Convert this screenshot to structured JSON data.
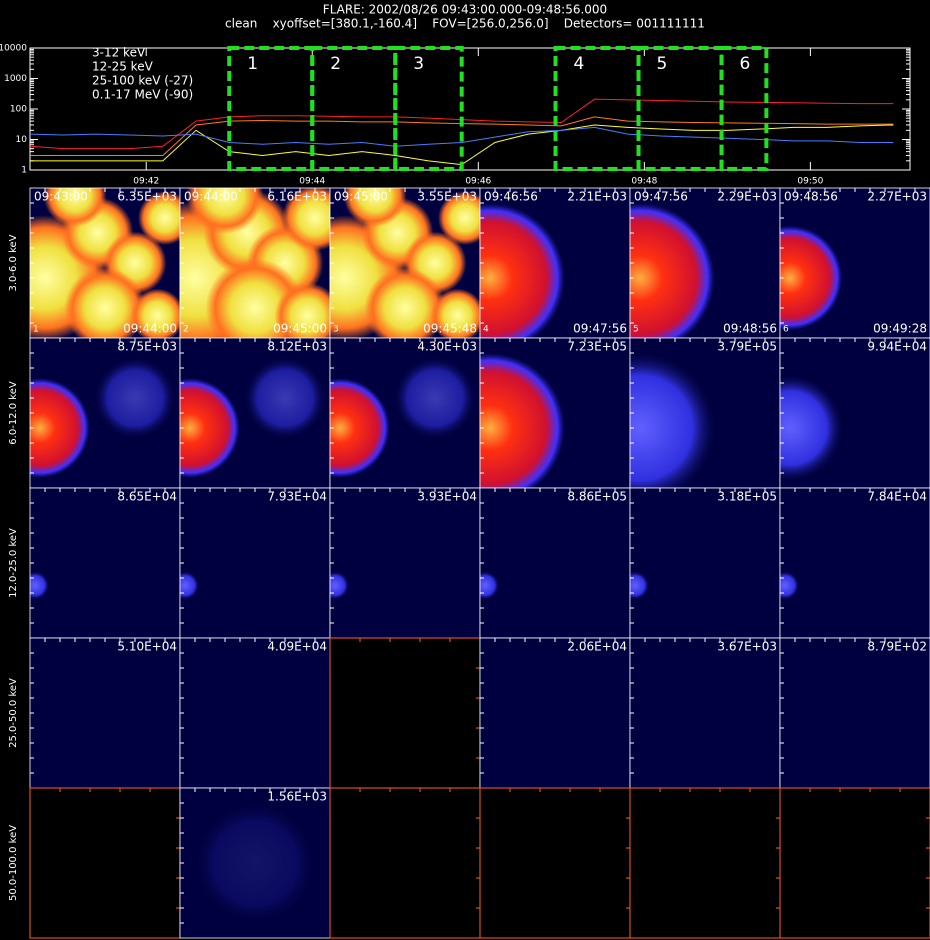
{
  "chart_data": [
    {
      "type": "line",
      "title": "FLARE: 2002/08/26 09:43:00.000-09:48:56.000",
      "subtitle": "clean    xyoffset=[380.1,-160.4]    FOV=[256.0,256.0]    Detectors= 001111111",
      "x": [
        40.6,
        41.0,
        41.4,
        41.8,
        42.2,
        42.6,
        43.0,
        43.4,
        43.8,
        44.2,
        44.6,
        45.0,
        45.4,
        45.8,
        46.2,
        46.6,
        47.0,
        47.4,
        47.8,
        48.2,
        48.6,
        49.0,
        49.4,
        49.8,
        50.2,
        50.6,
        51.0
      ],
      "series": [
        {
          "name": "3-12 keV",
          "color": "#ff2020",
          "values": [
            6,
            5,
            5,
            5,
            6,
            40,
            55,
            60,
            60,
            58,
            55,
            55,
            50,
            45,
            40,
            38,
            36,
            210,
            200,
            190,
            180,
            170,
            165,
            160,
            155,
            150,
            150
          ]
        },
        {
          "name": "12-25 keV",
          "color": "#ff7a20",
          "values": [
            3,
            3,
            3,
            3,
            3,
            30,
            40,
            42,
            40,
            40,
            38,
            38,
            35,
            33,
            32,
            30,
            28,
            55,
            40,
            38,
            36,
            35,
            34,
            33,
            32,
            32,
            32
          ]
        },
        {
          "name": "25-100 keV (-27)",
          "color": "#ffff30",
          "values": [
            2,
            2,
            2,
            2,
            2,
            20,
            4,
            3,
            4,
            3,
            4,
            3,
            2,
            1.5,
            8,
            15,
            20,
            30,
            25,
            22,
            20,
            20,
            22,
            25,
            25,
            28,
            30
          ]
        },
        {
          "name": "0.1-17 MeV (-90)",
          "color": "#4080ff",
          "values": [
            15,
            14,
            15,
            14,
            13,
            15,
            8,
            7,
            8,
            7,
            8,
            6,
            7,
            8,
            12,
            18,
            20,
            25,
            15,
            13,
            12,
            11,
            10,
            9,
            9,
            8,
            8
          ]
        }
      ],
      "log_scale": true,
      "xlim": [
        40.6,
        51.2
      ],
      "ylim": [
        1,
        10000
      ],
      "xticks": [
        {
          "value": 42,
          "label": "09:42"
        },
        {
          "value": 44,
          "label": "09:44"
        },
        {
          "value": 46,
          "label": "09:46"
        },
        {
          "value": 48,
          "label": "09:48"
        },
        {
          "value": 50,
          "label": "09:50"
        }
      ],
      "yticks": [
        1,
        10,
        100,
        1000,
        10000
      ],
      "legend": "upper left",
      "intervals": {
        "color": "#20e020",
        "labels": [
          "1",
          "2",
          "3",
          "4",
          "5",
          "6"
        ],
        "spans": [
          [
            43.0,
            44.0
          ],
          [
            44.0,
            45.0
          ],
          [
            45.0,
            45.8
          ],
          [
            46.93,
            47.93
          ],
          [
            47.93,
            48.93
          ],
          [
            48.93,
            49.47
          ]
        ]
      }
    },
    {
      "type": "heatmap",
      "rows": [
        "3.0-6.0 keV",
        "6.0-12.0 keV",
        "12.0-25.0 keV",
        "25.0-50.0 keV",
        "50.0-100.0 keV"
      ],
      "start_times": [
        "09:43:00",
        "09:44:00",
        "09:45:00",
        "09:46:56",
        "09:47:56",
        "09:48:56"
      ],
      "end_times": [
        "09:44:00",
        "09:45:00",
        "09:45:48",
        "09:47:56",
        "09:48:56",
        "09:49:28"
      ],
      "panel_labels": [
        "1",
        "2",
        "3",
        "4",
        "5",
        "6"
      ],
      "values": [
        [
          6350,
          6160,
          3550,
          2210,
          2290,
          2270
        ],
        [
          8750,
          8120,
          4300,
          723000,
          379000,
          99400
        ],
        [
          86500,
          79300,
          39300,
          886000,
          318000,
          78400
        ],
        [
          51000,
          40900,
          null,
          20600,
          3670,
          879
        ],
        [
          null,
          1560,
          null,
          null,
          null,
          null
        ]
      ],
      "value_labels": [
        [
          "6.35E+03",
          "6.16E+03",
          "3.55E+03",
          "2.21E+03",
          "2.29E+03",
          "2.27E+03"
        ],
        [
          "8.75E+03",
          "8.12E+03",
          "4.30E+03",
          "7.23E+05",
          "3.79E+05",
          "9.94E+04"
        ],
        [
          "8.65E+04",
          "7.93E+04",
          "3.93E+04",
          "8.86E+05",
          "3.18E+05",
          "7.84E+04"
        ],
        [
          "5.10E+04",
          "4.09E+04",
          null,
          "2.06E+04",
          "3.67E+03",
          "8.79E+02"
        ],
        [
          null,
          "1.56E+03",
          null,
          null,
          null,
          null
        ]
      ]
    }
  ]
}
